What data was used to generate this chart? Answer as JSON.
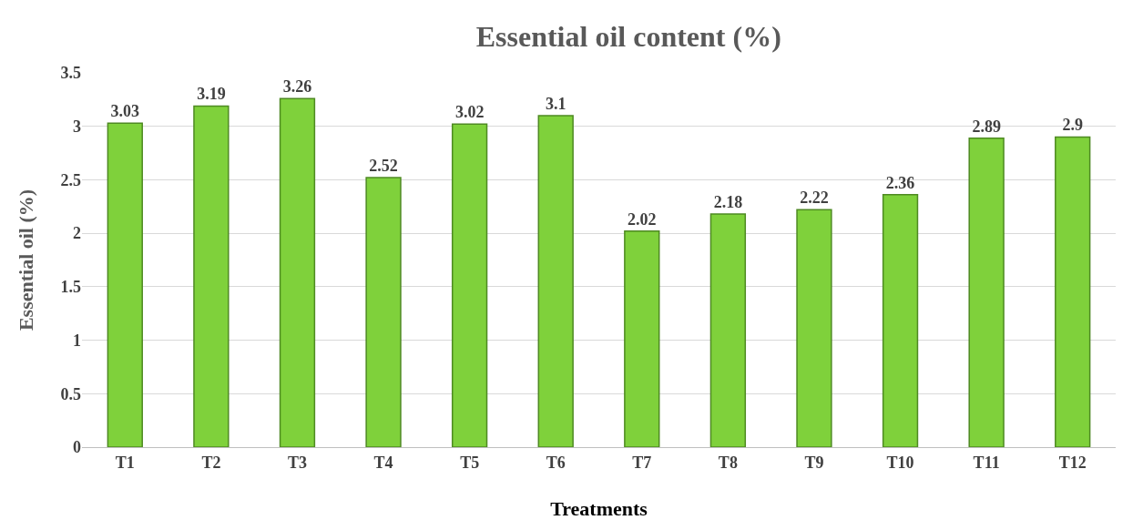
{
  "chart_data": {
    "type": "bar",
    "title": "Essential oil content (%)",
    "xlabel": "Treatments",
    "ylabel": "Essential oil (%)",
    "categories": [
      "T1",
      "T2",
      "T3",
      "T4",
      "T5",
      "T6",
      "T7",
      "T8",
      "T9",
      "T10",
      "T11",
      "T12"
    ],
    "values": [
      3.03,
      3.19,
      3.26,
      2.52,
      3.02,
      3.1,
      2.02,
      2.18,
      2.22,
      2.36,
      2.89,
      2.9
    ],
    "color": "#7fd13b",
    "ylim": [
      0,
      3.5
    ],
    "yticks": [
      0,
      0.5,
      1,
      1.5,
      2,
      2.5,
      3,
      3.5
    ],
    "grid": "y",
    "data_labels": true
  }
}
